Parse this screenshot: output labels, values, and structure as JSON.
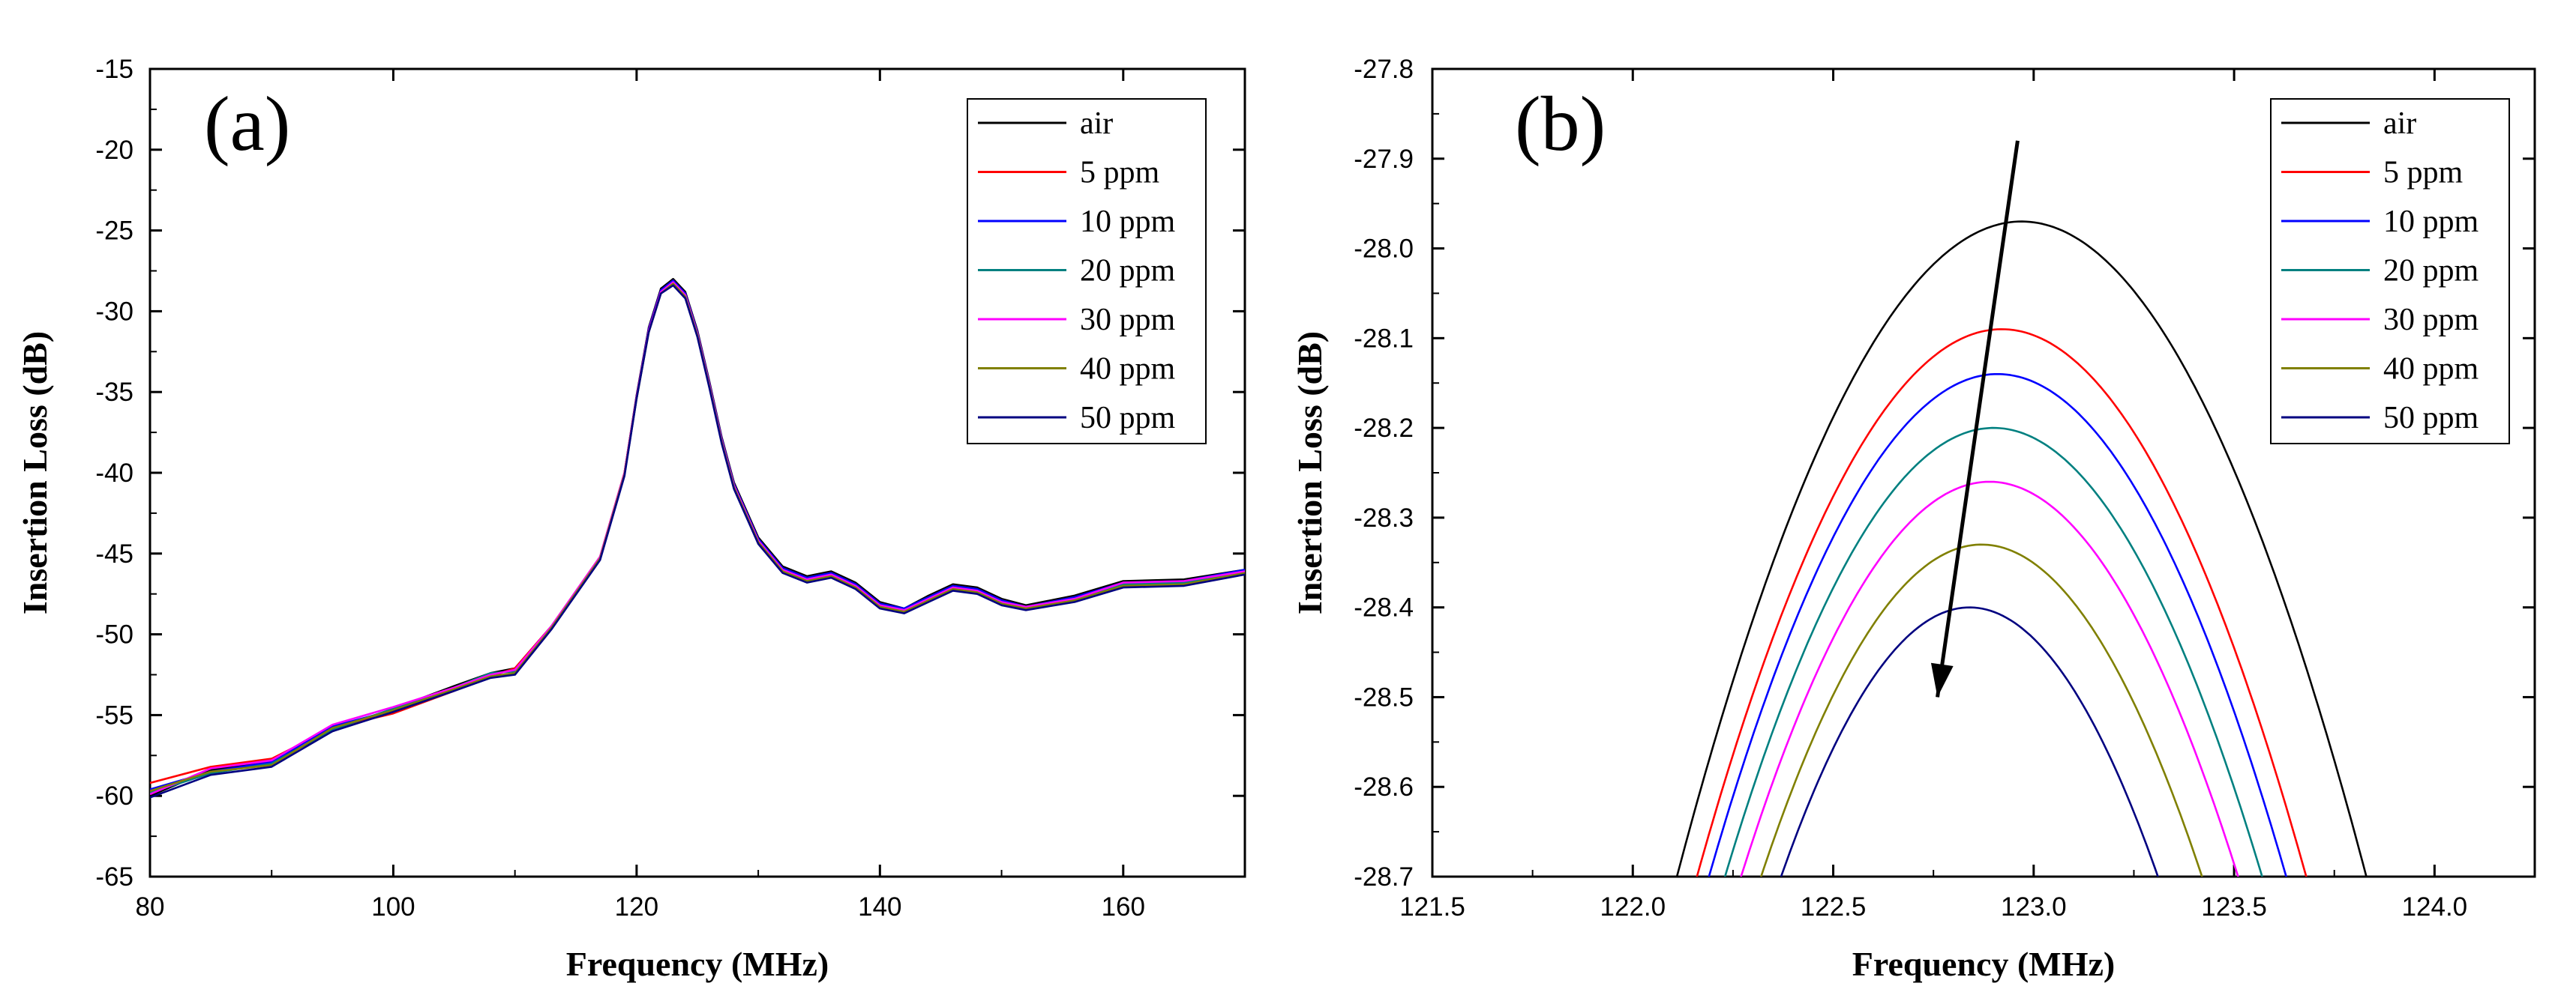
{
  "chart_data": [
    {
      "type": "line",
      "panel_label": "(a)",
      "xlabel": "Frequency (MHz)",
      "ylabel": "Insertion Loss (dB)",
      "xlim": [
        80,
        170
      ],
      "ylim": [
        -65,
        -15
      ],
      "xticks": [
        80,
        100,
        120,
        140,
        160
      ],
      "yticks": [
        -65,
        -60,
        -55,
        -50,
        -45,
        -40,
        -35,
        -30,
        -25,
        -20,
        -15
      ],
      "legend_position": "top-right",
      "x": [
        80,
        85,
        90,
        95,
        100,
        105,
        108,
        110,
        113,
        117,
        119,
        120,
        121,
        122,
        123,
        124,
        125,
        126,
        127,
        128,
        130,
        132,
        134,
        136,
        138,
        140,
        142,
        144,
        146,
        148,
        150,
        152,
        156,
        160,
        165,
        170
      ],
      "series": [
        {
          "name": "air",
          "color": "#000000",
          "values": [
            -60.0,
            -58.4,
            -57.9,
            -56.0,
            -54.6,
            -53.2,
            -52.4,
            -52.1,
            -49.5,
            -45.2,
            -40.0,
            -35.2,
            -31.0,
            -28.6,
            -28.0,
            -28.8,
            -31.2,
            -34.4,
            -37.8,
            -40.6,
            -44.0,
            -45.8,
            -46.4,
            -46.1,
            -46.8,
            -48.0,
            -48.4,
            -47.6,
            -46.9,
            -47.1,
            -47.8,
            -48.2,
            -47.6,
            -46.7,
            -46.6,
            -46.0
          ]
        },
        {
          "name": "5 ppm",
          "color": "#ff0000",
          "values": [
            -59.2,
            -58.2,
            -57.7,
            -55.8,
            -54.9,
            -53.5,
            -52.6,
            -52.1,
            -49.5,
            -45.2,
            -40.0,
            -35.3,
            -31.1,
            -28.7,
            -28.1,
            -28.9,
            -31.3,
            -34.5,
            -37.9,
            -40.7,
            -44.1,
            -45.9,
            -46.5,
            -46.2,
            -46.9,
            -48.1,
            -48.5,
            -47.7,
            -47.0,
            -47.2,
            -47.9,
            -48.3,
            -47.7,
            -46.9,
            -46.7,
            -46.1
          ]
        },
        {
          "name": "10 ppm",
          "color": "#0000ff",
          "values": [
            -59.6,
            -58.5,
            -57.9,
            -55.7,
            -54.7,
            -53.4,
            -52.5,
            -52.2,
            -49.6,
            -45.3,
            -40.1,
            -35.3,
            -31.1,
            -28.7,
            -28.1,
            -28.9,
            -31.3,
            -34.5,
            -37.9,
            -40.7,
            -44.1,
            -45.9,
            -46.5,
            -46.2,
            -46.9,
            -48.1,
            -48.4,
            -47.7,
            -47.0,
            -47.2,
            -47.9,
            -48.3,
            -47.7,
            -46.8,
            -46.7,
            -46.0
          ]
        },
        {
          "name": "20 ppm",
          "color": "#008080",
          "values": [
            -59.8,
            -58.6,
            -58.0,
            -55.9,
            -54.6,
            -53.3,
            -52.4,
            -52.3,
            -49.6,
            -45.3,
            -40.1,
            -35.4,
            -31.2,
            -28.8,
            -28.2,
            -29.0,
            -31.4,
            -34.6,
            -38.0,
            -40.8,
            -44.2,
            -46.0,
            -46.6,
            -46.3,
            -47.0,
            -48.2,
            -48.5,
            -47.8,
            -47.1,
            -47.3,
            -48.0,
            -48.3,
            -47.8,
            -46.9,
            -46.8,
            -46.1
          ]
        },
        {
          "name": "30 ppm",
          "color": "#ff00ff",
          "values": [
            -59.9,
            -58.3,
            -57.8,
            -55.6,
            -54.5,
            -53.3,
            -52.5,
            -52.2,
            -49.5,
            -45.2,
            -40.0,
            -35.3,
            -31.2,
            -28.8,
            -28.2,
            -29.0,
            -31.4,
            -34.6,
            -38.0,
            -40.8,
            -44.2,
            -46.0,
            -46.6,
            -46.3,
            -47.0,
            -48.2,
            -48.5,
            -47.8,
            -47.1,
            -47.3,
            -48.0,
            -48.3,
            -47.8,
            -46.8,
            -46.7,
            -46.1
          ]
        },
        {
          "name": "40 ppm",
          "color": "#808000",
          "values": [
            -59.7,
            -58.5,
            -58.1,
            -55.8,
            -54.7,
            -53.4,
            -52.6,
            -52.4,
            -49.6,
            -45.3,
            -40.1,
            -35.4,
            -31.3,
            -28.9,
            -28.3,
            -29.1,
            -31.5,
            -34.7,
            -38.1,
            -40.9,
            -44.3,
            -46.1,
            -46.7,
            -46.4,
            -47.1,
            -48.3,
            -48.6,
            -47.9,
            -47.2,
            -47.4,
            -48.1,
            -48.4,
            -47.9,
            -47.0,
            -46.9,
            -46.2
          ]
        },
        {
          "name": "50 ppm",
          "color": "#000080",
          "values": [
            -60.1,
            -58.7,
            -58.2,
            -56.0,
            -54.8,
            -53.5,
            -52.7,
            -52.5,
            -49.7,
            -45.4,
            -40.2,
            -35.4,
            -31.3,
            -28.9,
            -28.4,
            -29.2,
            -31.6,
            -34.8,
            -38.2,
            -41.0,
            -44.4,
            -46.2,
            -46.8,
            -46.5,
            -47.2,
            -48.4,
            -48.7,
            -48.0,
            -47.3,
            -47.5,
            -48.2,
            -48.5,
            -48.0,
            -47.1,
            -47.0,
            -46.3
          ]
        }
      ]
    },
    {
      "type": "line",
      "panel_label": "(b)",
      "xlabel": "Frequency (MHz)",
      "ylabel": "Insertion Loss (dB)",
      "xlim": [
        121.5,
        124.25
      ],
      "ylim": [
        -28.7,
        -27.8
      ],
      "xticks": [
        "121.5",
        "122.0",
        "122.5",
        "123.0",
        "123.5",
        "124.0"
      ],
      "yticks": [
        "-28.7",
        "-28.6",
        "-28.5",
        "-28.4",
        "-28.3",
        "-28.2",
        "-28.1",
        "-28.0",
        "-27.9",
        "-27.8"
      ],
      "legend_position": "top-right",
      "arrow": {
        "from": [
          122.96,
          -27.88
        ],
        "to": [
          122.76,
          -28.5
        ],
        "meaning": "increasing concentration"
      },
      "series": [
        {
          "name": "air",
          "color": "#000000",
          "peak_x": 122.97,
          "peak_y": -27.97,
          "half_width_at_bottom": 0.86
        },
        {
          "name": "5 ppm",
          "color": "#ff0000",
          "peak_x": 122.92,
          "peak_y": -28.09,
          "half_width_at_bottom": 0.76
        },
        {
          "name": "10 ppm",
          "color": "#0000ff",
          "peak_x": 122.91,
          "peak_y": -28.14,
          "half_width_at_bottom": 0.72
        },
        {
          "name": "20 ppm",
          "color": "#008080",
          "peak_x": 122.9,
          "peak_y": -28.2,
          "half_width_at_bottom": 0.67
        },
        {
          "name": "30 ppm",
          "color": "#ff00ff",
          "peak_x": 122.89,
          "peak_y": -28.26,
          "half_width_at_bottom": 0.62
        },
        {
          "name": "40 ppm",
          "color": "#808000",
          "peak_x": 122.87,
          "peak_y": -28.33,
          "half_width_at_bottom": 0.55
        },
        {
          "name": "50 ppm",
          "color": "#000080",
          "peak_x": 122.84,
          "peak_y": -28.4,
          "half_width_at_bottom": 0.47
        }
      ]
    }
  ]
}
